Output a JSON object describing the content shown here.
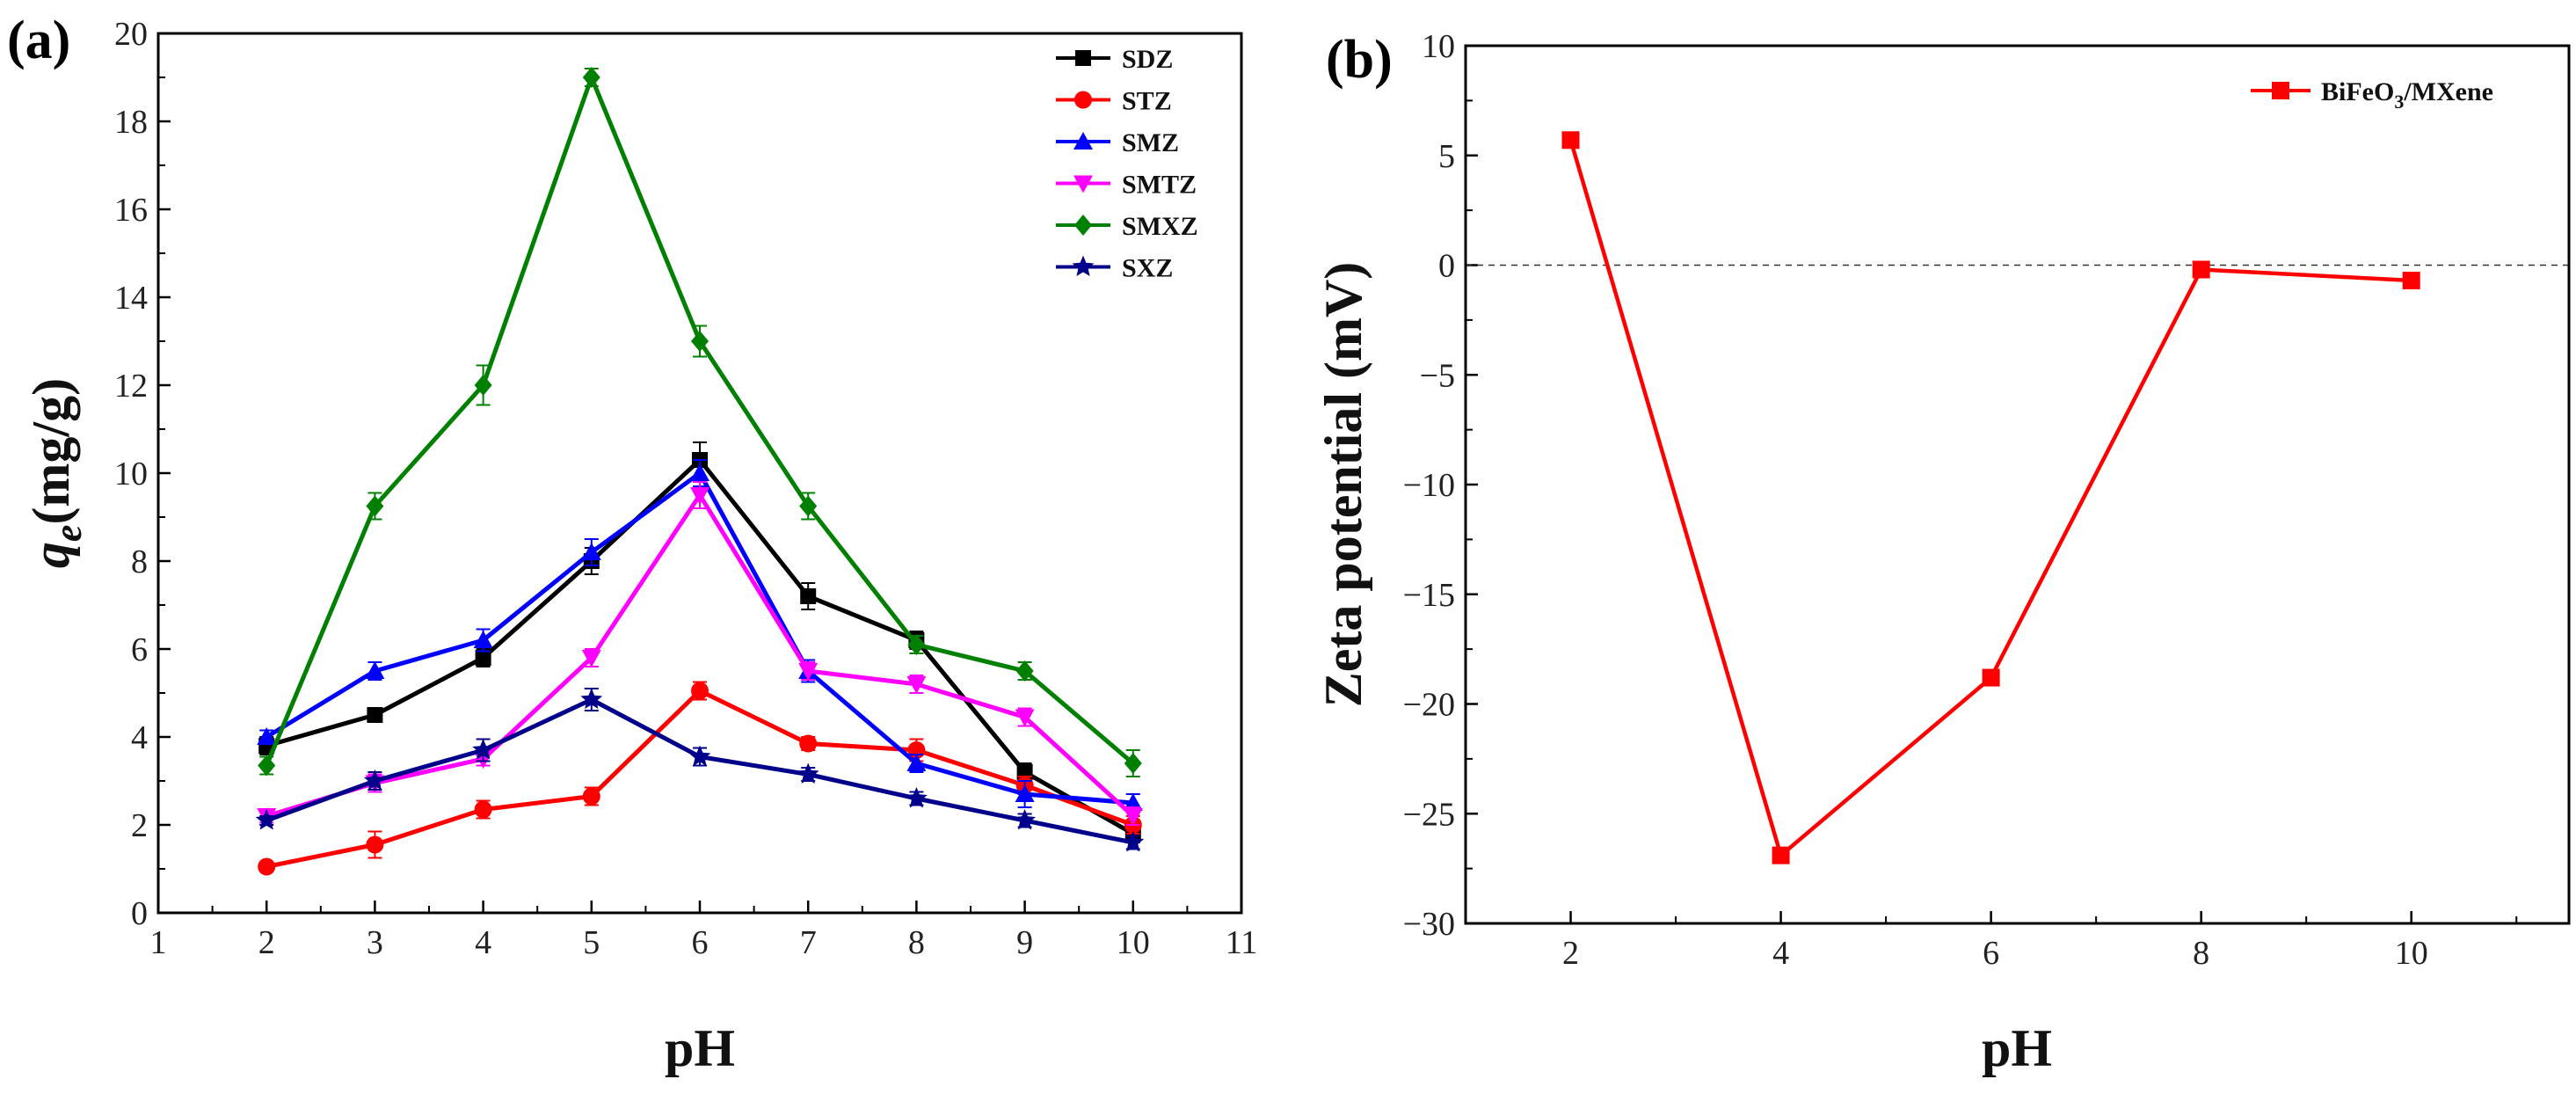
{
  "chart_data": [
    {
      "type": "line",
      "panel_label": "(a)",
      "xlabel": "pH",
      "ylabel_main": "q",
      "ylabel_sub": "e",
      "ylabel_rest": "(mg/g)",
      "xlim": [
        1,
        11
      ],
      "ylim": [
        0,
        20
      ],
      "xticks": [
        1,
        2,
        3,
        4,
        5,
        6,
        7,
        8,
        9,
        10,
        11
      ],
      "yticks": [
        0,
        2,
        4,
        6,
        8,
        10,
        12,
        14,
        16,
        18,
        20
      ],
      "x": [
        2,
        3,
        4,
        5,
        6,
        7,
        8,
        9,
        10
      ],
      "legend_position": "top-right",
      "series": [
        {
          "name": "SDZ",
          "color": "#000000",
          "marker": "square",
          "values": [
            3.8,
            4.5,
            5.8,
            8.0,
            10.3,
            7.2,
            6.2,
            3.2,
            1.8
          ],
          "errors": [
            0.2,
            0.15,
            0.2,
            0.3,
            0.4,
            0.3,
            0.2,
            0.2,
            0.2
          ]
        },
        {
          "name": "STZ",
          "color": "#ff0000",
          "marker": "circle",
          "values": [
            1.05,
            1.55,
            2.35,
            2.65,
            5.05,
            3.85,
            3.7,
            2.9,
            2.0
          ],
          "errors": [
            0.1,
            0.3,
            0.2,
            0.2,
            0.2,
            0.15,
            0.25,
            0.2,
            0.2
          ]
        },
        {
          "name": "SMZ",
          "color": "#0000ff",
          "marker": "triangle-up",
          "values": [
            4.0,
            5.5,
            6.2,
            8.2,
            10.0,
            5.5,
            3.4,
            2.7,
            2.5
          ],
          "errors": [
            0.15,
            0.2,
            0.25,
            0.3,
            0.3,
            0.25,
            0.2,
            0.3,
            0.2
          ]
        },
        {
          "name": "SMTZ",
          "color": "#ff00ff",
          "marker": "triangle-down",
          "values": [
            2.2,
            2.95,
            3.5,
            5.8,
            9.5,
            5.5,
            5.2,
            4.45,
            2.2
          ],
          "errors": [
            0.15,
            0.2,
            0.15,
            0.2,
            0.3,
            0.2,
            0.2,
            0.2,
            0.2
          ]
        },
        {
          "name": "SMXZ",
          "color": "#008000",
          "marker": "diamond",
          "values": [
            3.35,
            9.25,
            12.0,
            19.0,
            13.0,
            9.25,
            6.1,
            5.5,
            3.4
          ],
          "errors": [
            0.2,
            0.3,
            0.45,
            0.2,
            0.35,
            0.3,
            0.2,
            0.2,
            0.3
          ]
        },
        {
          "name": "SXZ",
          "color": "#00008b",
          "marker": "star",
          "values": [
            2.1,
            3.0,
            3.7,
            4.85,
            3.55,
            3.15,
            2.6,
            2.1,
            1.6
          ],
          "errors": [
            0.1,
            0.2,
            0.25,
            0.25,
            0.2,
            0.15,
            0.15,
            0.15,
            0.15
          ]
        }
      ]
    },
    {
      "type": "line",
      "panel_label": "(b)",
      "xlabel": "pH",
      "ylabel": "Zeta potential (mV)",
      "xlim": [
        1,
        11.5
      ],
      "ylim": [
        -30,
        10
      ],
      "xticks": [
        2,
        4,
        6,
        8,
        10
      ],
      "yticks": [
        -30,
        -25,
        -20,
        -15,
        -10,
        -5,
        0,
        5,
        10
      ],
      "reference_line_y": 0,
      "legend_position": "top-right",
      "series": [
        {
          "name_main": "BiFeO",
          "name_sub": "3",
          "name_rest": "/MXene",
          "color": "#ff0000",
          "marker": "square",
          "x": [
            2,
            4,
            6,
            8,
            10
          ],
          "values": [
            5.7,
            -26.9,
            -18.8,
            -0.2,
            -0.7
          ]
        }
      ]
    }
  ]
}
